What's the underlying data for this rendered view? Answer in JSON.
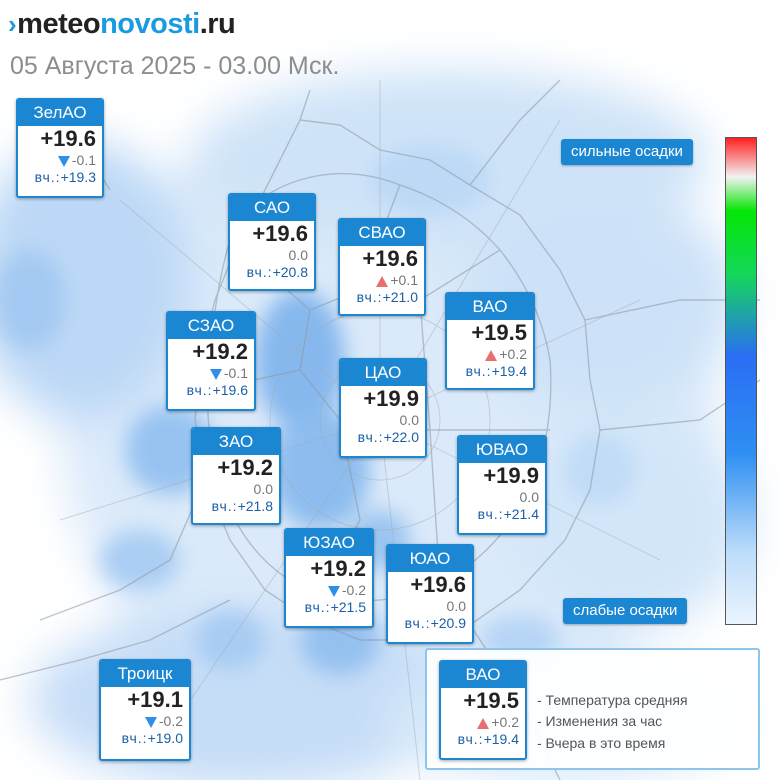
{
  "logo": {
    "mark": "›",
    "part1": "meteo",
    "part2": "novosti",
    "part3": ".ru"
  },
  "datetime": "05 Августа 2025 - 03.00 Мск.",
  "yesterday_label": "вч.:",
  "districts": [
    {
      "name": "ЗелАО",
      "temp": "+19.6",
      "trend": "down",
      "change": "-0.1",
      "yesterday": "+19.3"
    },
    {
      "name": "САО",
      "temp": "+19.6",
      "trend": "none",
      "change": "0.0",
      "yesterday": "+20.8"
    },
    {
      "name": "СВАО",
      "temp": "+19.6",
      "trend": "up",
      "change": "+0.1",
      "yesterday": "+21.0"
    },
    {
      "name": "ВАО",
      "temp": "+19.5",
      "trend": "up",
      "change": "+0.2",
      "yesterday": "+19.4"
    },
    {
      "name": "СЗАО",
      "temp": "+19.2",
      "trend": "down",
      "change": "-0.1",
      "yesterday": "+19.6"
    },
    {
      "name": "ЦАО",
      "temp": "+19.9",
      "trend": "none",
      "change": "0.0",
      "yesterday": "+22.0"
    },
    {
      "name": "ЗАО",
      "temp": "+19.2",
      "trend": "none",
      "change": "0.0",
      "yesterday": "+21.8"
    },
    {
      "name": "ЮВАО",
      "temp": "+19.9",
      "trend": "none",
      "change": "0.0",
      "yesterday": "+21.4"
    },
    {
      "name": "ЮЗАО",
      "temp": "+19.2",
      "trend": "down",
      "change": "-0.2",
      "yesterday": "+21.5"
    },
    {
      "name": "ЮАО",
      "temp": "+19.6",
      "trend": "none",
      "change": "0.0",
      "yesterday": "+20.9"
    },
    {
      "name": "Троицк",
      "temp": "+19.1",
      "trend": "down",
      "change": "-0.2",
      "yesterday": "+19.0"
    }
  ],
  "precip_scale": {
    "top_label": "сильные осадки",
    "bottom_label": "слабые осадки"
  },
  "legend": {
    "example": {
      "name": "ВАО",
      "temp": "+19.5",
      "trend": "up",
      "change": "+0.2",
      "yesterday": "+19.4"
    },
    "lines": [
      "- Температура средняя",
      "- Изменения за час",
      "- Вчера в это время"
    ]
  },
  "colors": {
    "accent": "#1b87d3",
    "trend_up": "#e5706f",
    "trend_down": "#2e8fe6",
    "precip_light": "#cfe4f8"
  }
}
